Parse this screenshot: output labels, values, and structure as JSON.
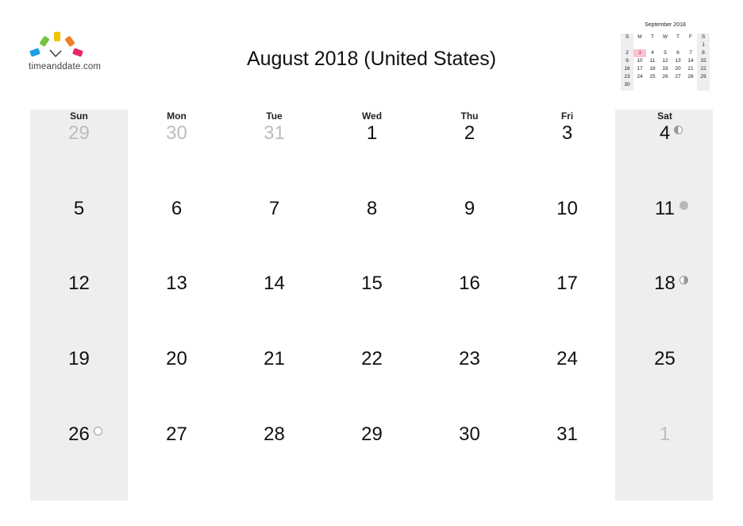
{
  "logo": {
    "text": "timeanddate.com",
    "colors": [
      "#1ea0e6",
      "#7ac142",
      "#f5c400",
      "#f07e26",
      "#e8296b"
    ],
    "icon": "clock-hands-icon"
  },
  "title": "August 2018 (United States)",
  "mini_calendar": {
    "title": "September 2018",
    "weekdays": [
      "S",
      "M",
      "T",
      "W",
      "T",
      "F",
      "S"
    ],
    "highlight_color": "#f7c6d0",
    "weeks": [
      [
        "",
        "",
        "",
        "",
        "",
        "",
        "1"
      ],
      [
        "2",
        "3",
        "4",
        "5",
        "6",
        "7",
        "8"
      ],
      [
        "9",
        "10",
        "11",
        "12",
        "13",
        "14",
        "15"
      ],
      [
        "16",
        "17",
        "18",
        "19",
        "20",
        "21",
        "22"
      ],
      [
        "23",
        "24",
        "25",
        "26",
        "27",
        "28",
        "29"
      ],
      [
        "30",
        "",
        "",
        "",
        "",
        "",
        ""
      ]
    ],
    "highlighted_day": "3"
  },
  "calendar": {
    "weekdays": [
      "Sun",
      "Mon",
      "Tue",
      "Wed",
      "Thu",
      "Fri",
      "Sat"
    ],
    "weeks": [
      [
        {
          "d": "29",
          "muted": true
        },
        {
          "d": "30",
          "muted": true
        },
        {
          "d": "31",
          "muted": true
        },
        {
          "d": "1"
        },
        {
          "d": "2"
        },
        {
          "d": "3"
        },
        {
          "d": "4",
          "moon": "last-quarter"
        }
      ],
      [
        {
          "d": "5"
        },
        {
          "d": "6"
        },
        {
          "d": "7"
        },
        {
          "d": "8"
        },
        {
          "d": "9"
        },
        {
          "d": "10"
        },
        {
          "d": "11",
          "moon": "new"
        }
      ],
      [
        {
          "d": "12"
        },
        {
          "d": "13"
        },
        {
          "d": "14"
        },
        {
          "d": "15"
        },
        {
          "d": "16"
        },
        {
          "d": "17"
        },
        {
          "d": "18",
          "moon": "first-quarter"
        }
      ],
      [
        {
          "d": "19"
        },
        {
          "d": "20"
        },
        {
          "d": "21"
        },
        {
          "d": "22"
        },
        {
          "d": "23"
        },
        {
          "d": "24"
        },
        {
          "d": "25"
        }
      ],
      [
        {
          "d": "26",
          "moon": "full"
        },
        {
          "d": "27"
        },
        {
          "d": "28"
        },
        {
          "d": "29"
        },
        {
          "d": "30"
        },
        {
          "d": "31"
        },
        {
          "d": "1",
          "muted": true
        }
      ]
    ],
    "weekend_bg": "#eeeeee",
    "muted_color": "#bdbdbd"
  }
}
